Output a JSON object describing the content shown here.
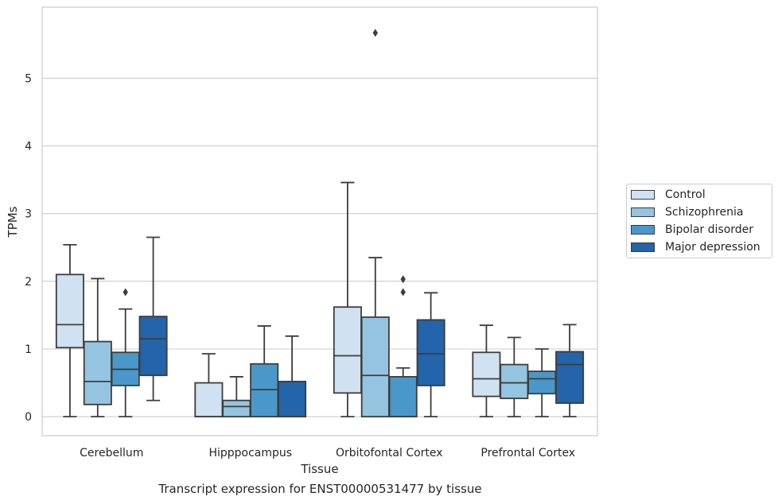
{
  "caption": "Transcript expression for ENST00000531477 by tissue",
  "chart_data": {
    "type": "box",
    "xlabel": "Tissue",
    "ylabel": "TPMs",
    "ylim": [
      -0.28,
      6.05
    ],
    "yticks": [
      0,
      1,
      2,
      3,
      4,
      5
    ],
    "grid": true,
    "legend_position": "right",
    "categories": [
      "Cerebellum",
      "Hipppocampus",
      "Orbitofontal Cortex",
      "Prefrontal Cortex"
    ],
    "series": [
      {
        "name": "Control",
        "color": "#d0e1f2",
        "boxes": [
          {
            "whislo": 0.0,
            "q1": 1.02,
            "med": 1.36,
            "q3": 2.1,
            "whishi": 2.54,
            "fliers": []
          },
          {
            "whislo": 0.0,
            "q1": 0.0,
            "med": 0.0,
            "q3": 0.5,
            "whishi": 0.93,
            "fliers": []
          },
          {
            "whislo": 0.0,
            "q1": 0.35,
            "med": 0.9,
            "q3": 1.62,
            "whishi": 3.46,
            "fliers": []
          },
          {
            "whislo": 0.0,
            "q1": 0.3,
            "med": 0.56,
            "q3": 0.95,
            "whishi": 1.35,
            "fliers": []
          }
        ]
      },
      {
        "name": "Schizophrenia",
        "color": "#94c4df",
        "boxes": [
          {
            "whislo": 0.0,
            "q1": 0.18,
            "med": 0.52,
            "q3": 1.11,
            "whishi": 2.04,
            "fliers": []
          },
          {
            "whislo": 0.0,
            "q1": 0.0,
            "med": 0.15,
            "q3": 0.24,
            "whishi": 0.59,
            "fliers": []
          },
          {
            "whislo": 0.0,
            "q1": 0.0,
            "med": 0.61,
            "q3": 1.47,
            "whishi": 2.35,
            "fliers": [
              5.67
            ]
          },
          {
            "whislo": 0.0,
            "q1": 0.27,
            "med": 0.5,
            "q3": 0.77,
            "whishi": 1.17,
            "fliers": []
          }
        ]
      },
      {
        "name": "Bipolar disorder",
        "color": "#4a98c9",
        "boxes": [
          {
            "whislo": 0.0,
            "q1": 0.46,
            "med": 0.7,
            "q3": 0.95,
            "whishi": 1.59,
            "fliers": [
              1.84
            ]
          },
          {
            "whislo": 0.0,
            "q1": 0.0,
            "med": 0.4,
            "q3": 0.78,
            "whishi": 1.34,
            "fliers": []
          },
          {
            "whislo": 0.0,
            "q1": 0.0,
            "med": 0.0,
            "q3": 0.59,
            "whishi": 0.72,
            "fliers": [
              1.84,
              2.03
            ]
          },
          {
            "whislo": 0.0,
            "q1": 0.34,
            "med": 0.56,
            "q3": 0.67,
            "whishi": 1.0,
            "fliers": []
          }
        ]
      },
      {
        "name": "Major depression",
        "color": "#2364aa",
        "boxes": [
          {
            "whislo": 0.24,
            "q1": 0.61,
            "med": 1.15,
            "q3": 1.48,
            "whishi": 2.65,
            "fliers": []
          },
          {
            "whislo": 0.0,
            "q1": 0.0,
            "med": 0.0,
            "q3": 0.52,
            "whishi": 1.19,
            "fliers": []
          },
          {
            "whislo": 0.0,
            "q1": 0.46,
            "med": 0.93,
            "q3": 1.43,
            "whishi": 1.83,
            "fliers": []
          },
          {
            "whislo": 0.0,
            "q1": 0.2,
            "med": 0.77,
            "q3": 0.96,
            "whishi": 1.36,
            "fliers": []
          }
        ]
      }
    ]
  }
}
